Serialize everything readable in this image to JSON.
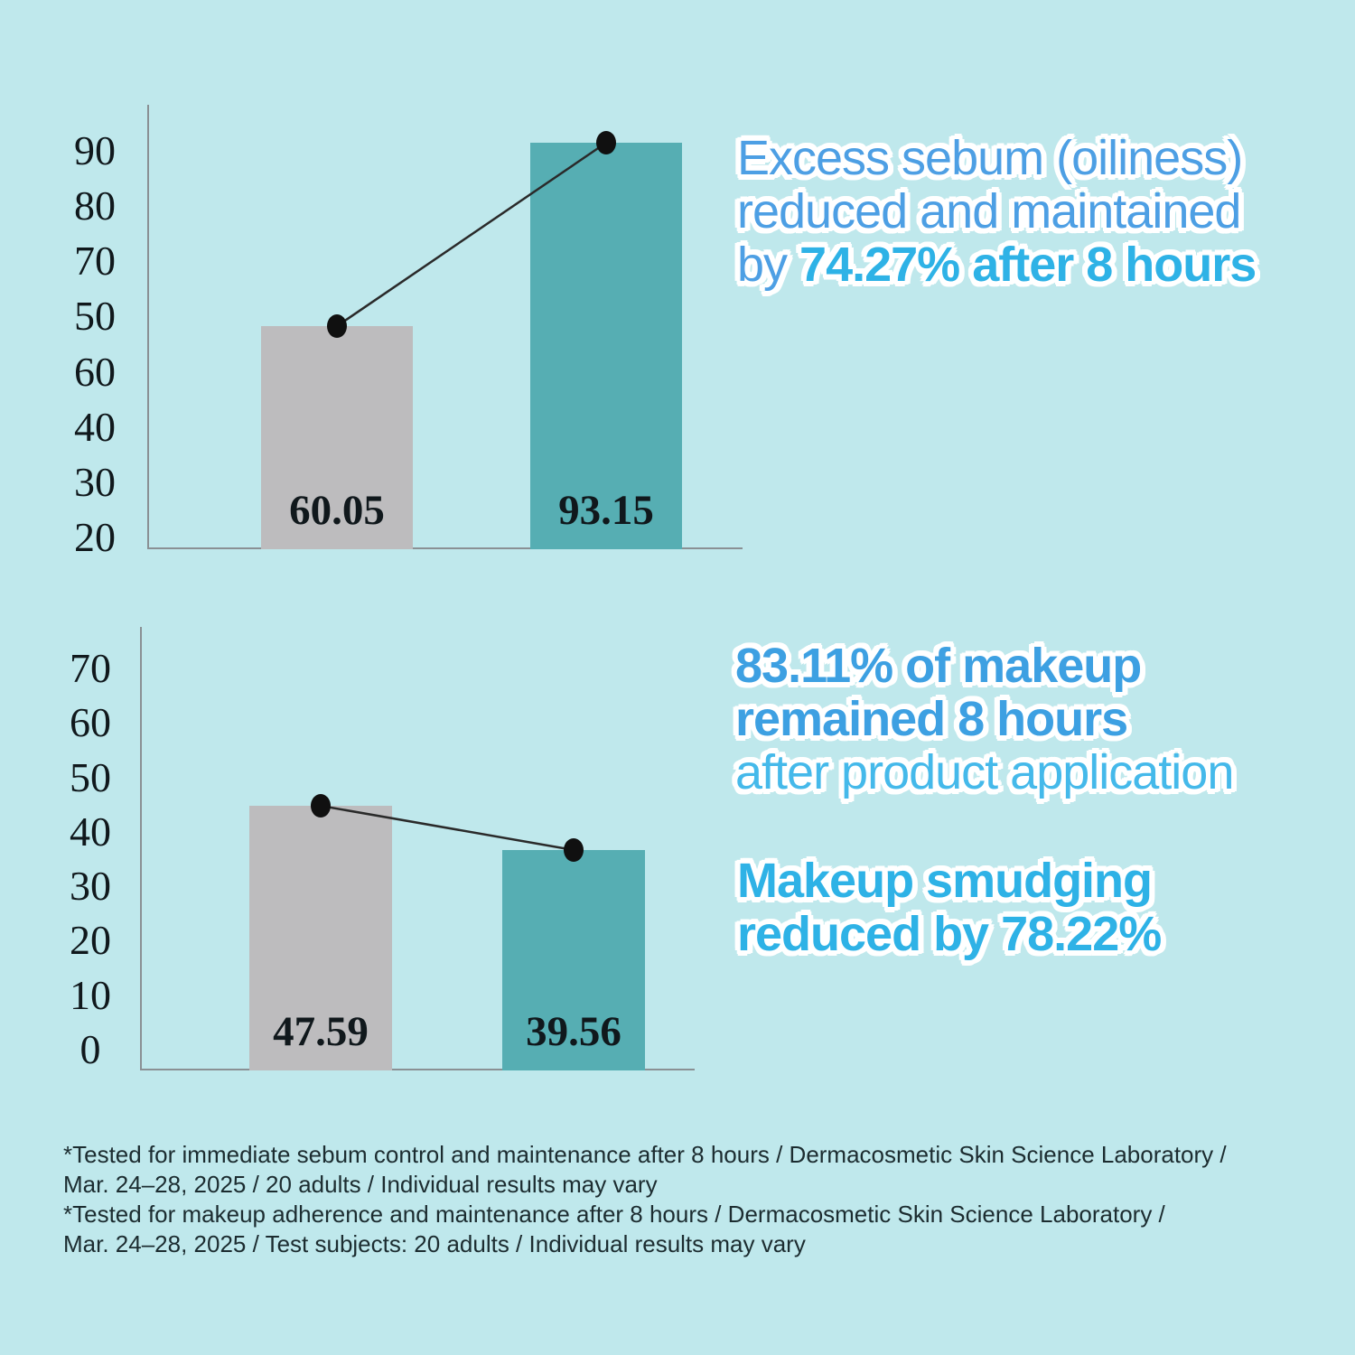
{
  "colors": {
    "background": "#bfe8ec",
    "bar_gray": "#bdbcbe",
    "bar_teal": "#56aeb3",
    "axis_line": "#8a9094",
    "dot_black": "#101010",
    "connector_line": "#2a2a2a",
    "tick_text": "#10181c",
    "value_label_text": "#10181c",
    "headline_blue": "#4d9fe4",
    "headline_blue_bold": "#3da0e2",
    "headline_cyan_bold": "#2eb2e6",
    "headline_cyan_light": "#45b9ea",
    "outline_white": "#ffffff",
    "footnote_text": "#1c2c30"
  },
  "chart_data": [
    {
      "type": "bar",
      "title": "",
      "xlabel": "",
      "ylabel": "",
      "values": [
        60.05,
        93.15
      ],
      "bar_colors": [
        "#bdbcbe",
        "#56aeb3"
      ],
      "yticks": [
        "90",
        "80",
        "70",
        "50",
        "60",
        "40",
        "30",
        "20"
      ],
      "ylim": [
        20,
        100
      ],
      "grid": false,
      "legend": false,
      "marker_line": true
    },
    {
      "type": "bar",
      "title": "",
      "xlabel": "",
      "ylabel": "",
      "values": [
        47.59,
        39.56
      ],
      "bar_colors": [
        "#bdbcbe",
        "#56aeb3"
      ],
      "yticks": [
        "70",
        "60",
        "50",
        "40",
        "30",
        "20",
        "10",
        "0"
      ],
      "ylim": [
        0,
        80
      ],
      "grid": false,
      "legend": false,
      "marker_line": true
    }
  ],
  "headlines": {
    "sebum": {
      "line1": "Excess sebum (oiliness)",
      "line2": "reduced and maintained",
      "line3_regular": "by ",
      "line3_bold": "74.27% after 8 hours"
    },
    "makeup_retention": {
      "line1": "83.11% of makeup",
      "line2": "remained 8 hours",
      "line3": "after product application"
    },
    "smudging": {
      "line1": "Makeup smudging",
      "line2": "reduced by 78.22%"
    }
  },
  "footnotes": {
    "lines": [
      "*Tested for immediate sebum control and maintenance after 8 hours / Dermacosmetic Skin Science Laboratory /",
      "Mar. 24–28, 2025 / 20 adults / Individual results may vary",
      "*Tested for makeup adherence and maintenance after 8 hours / Dermacosmetic Skin Science Laboratory /",
      "Mar. 24–28, 2025 / Test subjects: 20 adults / Individual results may vary"
    ]
  }
}
